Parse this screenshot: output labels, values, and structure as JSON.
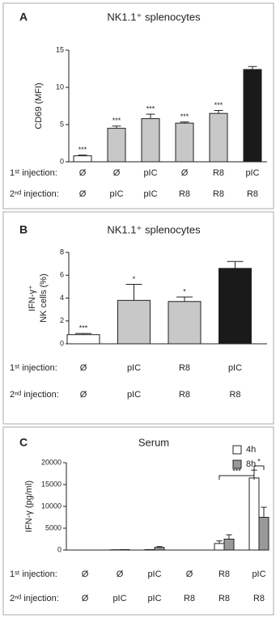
{
  "chart_data": [
    {
      "type": "bar",
      "panel": "A",
      "title": "NK1.1⁺ splenocytes",
      "y_label": "CD69 (MFI)",
      "values": [
        0.8,
        4.5,
        5.8,
        5.2,
        6.5,
        12.4
      ],
      "errors": [
        0.1,
        0.3,
        0.6,
        0.15,
        0.4,
        0.4
      ],
      "colors": [
        "#ffffff",
        "#c8c8c8",
        "#c8c8c8",
        "#c8c8c8",
        "#c8c8c8",
        "#1a1a1a"
      ],
      "annotations": [
        "***",
        "***",
        "***",
        "***",
        "***",
        null
      ],
      "ylim": [
        0,
        15
      ],
      "yticks": [
        0,
        5,
        10,
        15
      ],
      "injection_rows": [
        {
          "label": "1ˢᵗ injection:",
          "values": [
            "Ø",
            "Ø",
            "pIC",
            "Ø",
            "R8",
            "pIC"
          ]
        },
        {
          "label": "2ⁿᵈ injection:",
          "values": [
            "Ø",
            "pIC",
            "pIC",
            "R8",
            "R8",
            "R8"
          ]
        }
      ]
    },
    {
      "type": "bar",
      "panel": "B",
      "title": "NK1.1⁺ splenocytes",
      "y_label": [
        "IFN-γ⁺",
        "NK cells (%)"
      ],
      "values": [
        0.8,
        3.8,
        3.7,
        6.6
      ],
      "errors": [
        0.1,
        1.4,
        0.4,
        0.6
      ],
      "colors": [
        "#ffffff",
        "#c8c8c8",
        "#c8c8c8",
        "#1a1a1a"
      ],
      "annotations": [
        "***",
        "*",
        "*",
        null
      ],
      "ylim": [
        0,
        8
      ],
      "yticks": [
        0,
        2,
        4,
        6,
        8
      ],
      "injection_rows": [
        {
          "label": "1ˢᵗ injection:",
          "values": [
            "Ø",
            "pIC",
            "R8",
            "pIC"
          ]
        },
        {
          "label": "2ⁿᵈ injection:",
          "values": [
            "Ø",
            "pIC",
            "R8",
            "R8"
          ]
        }
      ]
    },
    {
      "type": "grouped_bar",
      "panel": "C",
      "title": "Serum",
      "y_label": "IFN-γ (pg/ml)",
      "series": [
        {
          "name": "4h",
          "color": "#ffffff",
          "values": [
            0,
            50,
            100,
            0,
            1500,
            16500
          ],
          "errors": [
            0,
            0,
            0,
            0,
            600,
            1800
          ]
        },
        {
          "name": "8h",
          "color": "#999999",
          "values": [
            0,
            100,
            600,
            0,
            2500,
            7500
          ],
          "errors": [
            0,
            0,
            200,
            0,
            1000,
            2300
          ]
        }
      ],
      "annotations": [
        "***",
        "*"
      ],
      "ylim": [
        0,
        20000
      ],
      "yticks": [
        0,
        5000,
        10000,
        15000,
        20000
      ],
      "injection_rows": [
        {
          "label": "1ˢᵗ injection:",
          "values": [
            "Ø",
            "Ø",
            "pIC",
            "Ø",
            "R8",
            "pIC"
          ]
        },
        {
          "label": "2ⁿᵈ injection:",
          "values": [
            "Ø",
            "pIC",
            "pIC",
            "R8",
            "R8",
            "R8"
          ]
        }
      ]
    }
  ]
}
